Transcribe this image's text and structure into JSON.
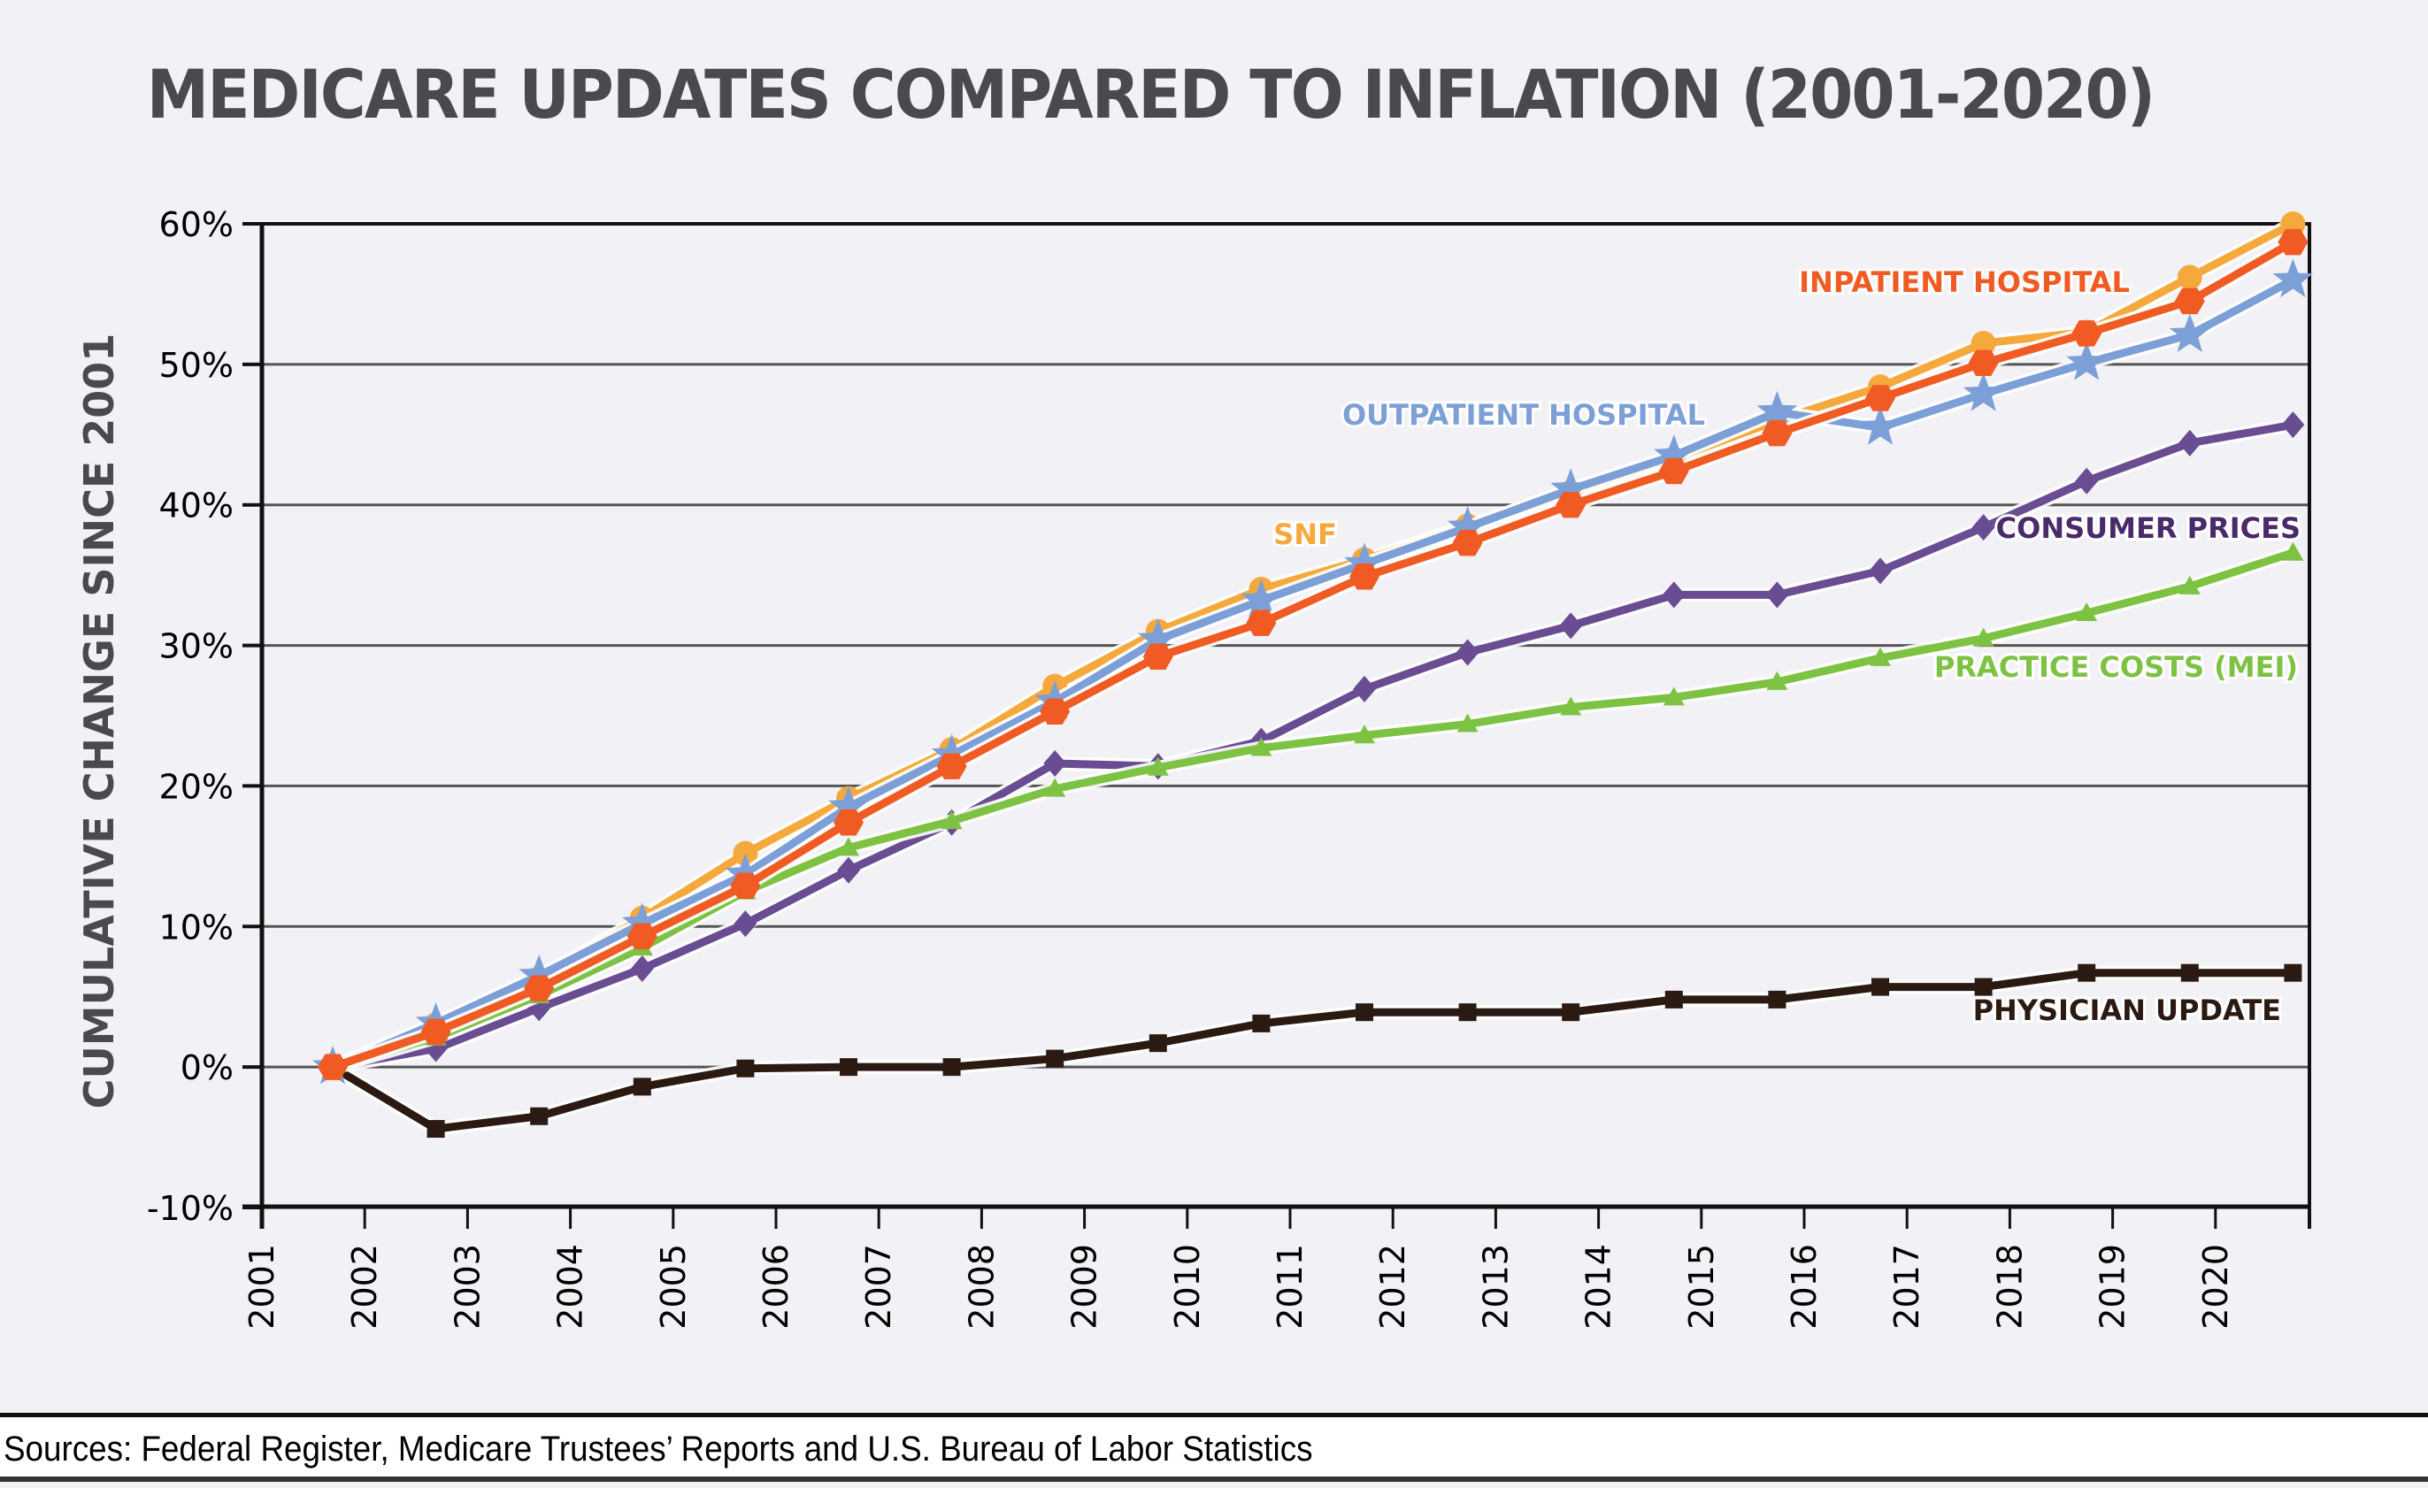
{
  "chart_data": {
    "type": "line",
    "title": "MEDICARE UPDATES COMPARED TO INFLATION (2001-2020)",
    "xlabel": "",
    "ylabel": "CUMULATIVE CHANGE SINCE 2001",
    "x_tick_labels": [
      "2001",
      "2002",
      "2003",
      "2004",
      "2005",
      "2006",
      "2007",
      "2008",
      "2009",
      "2010",
      "2011",
      "2012",
      "2013",
      "2014",
      "2015",
      "2016",
      "2017",
      "2018",
      "2019",
      "2020"
    ],
    "x": [
      2001,
      2002,
      2003,
      2004,
      2005,
      2006,
      2007,
      2008,
      2009,
      2010,
      2011,
      2012,
      2013,
      2014,
      2015,
      2016,
      2017,
      2018,
      2019,
      2020
    ],
    "ylim": [
      -10,
      60
    ],
    "y_ticks": [
      -10,
      0,
      10,
      20,
      30,
      40,
      50,
      60
    ],
    "y_tick_labels": [
      "-10%",
      "0%",
      "10%",
      "20%",
      "30%",
      "40%",
      "50%",
      "60%"
    ],
    "grid": true,
    "legend": "inline labels",
    "series": [
      {
        "name": "SNF",
        "label": "SNF",
        "color": "#f5a93c",
        "marker": "circle",
        "values": [
          0,
          3.0,
          6.3,
          10.6,
          15.2,
          19.1,
          22.6,
          27.1,
          31.0,
          34.0,
          36.1,
          38.5,
          40.9,
          43.3,
          46.0,
          48.4,
          51.5,
          52.3,
          56.2,
          60.0
        ]
      },
      {
        "name": "Outpatient Hospital",
        "label": "OUTPATIENT HOSPITAL",
        "color": "#7b9fd6",
        "marker": "star",
        "values": [
          0,
          3.1,
          6.5,
          10.2,
          13.7,
          18.5,
          22.2,
          26.0,
          30.4,
          33.2,
          35.8,
          38.4,
          41.1,
          43.5,
          46.6,
          45.5,
          47.9,
          50.1,
          52.1,
          56.0
        ]
      },
      {
        "name": "Inpatient Hospital",
        "label": "INPATIENT HOSPITAL",
        "color": "#f05a23",
        "marker": "hexagon",
        "values": [
          0,
          2.5,
          5.6,
          9.3,
          12.9,
          17.4,
          21.4,
          25.3,
          29.2,
          31.6,
          34.9,
          37.3,
          40.0,
          42.4,
          45.1,
          47.6,
          50.1,
          52.2,
          54.5,
          58.7
        ]
      },
      {
        "name": "Consumer Prices",
        "label": "CONSUMER PRICES",
        "color": "#6a4c93",
        "label_color": "#4a2a6a",
        "marker": "diamond",
        "values": [
          0,
          1.3,
          4.2,
          7.0,
          10.2,
          14.0,
          17.4,
          21.6,
          21.4,
          23.2,
          26.9,
          29.5,
          31.4,
          33.6,
          33.6,
          35.3,
          38.4,
          41.7,
          44.4,
          45.7
        ]
      },
      {
        "name": "Practice Costs (MEI)",
        "label": "PRACTICE COSTS (MEI)",
        "color": "#7dc242",
        "marker": "triangle",
        "values": [
          0,
          2.1,
          5.1,
          8.5,
          12.5,
          15.6,
          17.5,
          19.8,
          21.3,
          22.7,
          23.6,
          24.4,
          25.6,
          26.3,
          27.4,
          29.1,
          30.5,
          32.3,
          34.2,
          36.6
        ]
      },
      {
        "name": "Physician Update",
        "label": "PHYSICIAN UPDATE",
        "color": "#2b1a12",
        "marker": "square",
        "values": [
          0,
          -4.4,
          -3.5,
          -1.4,
          -0.1,
          0.0,
          0.0,
          0.6,
          1.7,
          3.1,
          3.9,
          3.9,
          3.9,
          4.8,
          4.8,
          5.7,
          5.7,
          6.7,
          6.7,
          6.7
        ]
      }
    ]
  },
  "footer": {
    "source": "Sources: Federal Register, Medicare Trustees’ Reports and U.S. Bureau of Labor Statistics"
  },
  "colors": {
    "background": "#f2f1f6",
    "title": "#4a4a4e",
    "axis": "#111111",
    "grid": "#555555"
  }
}
